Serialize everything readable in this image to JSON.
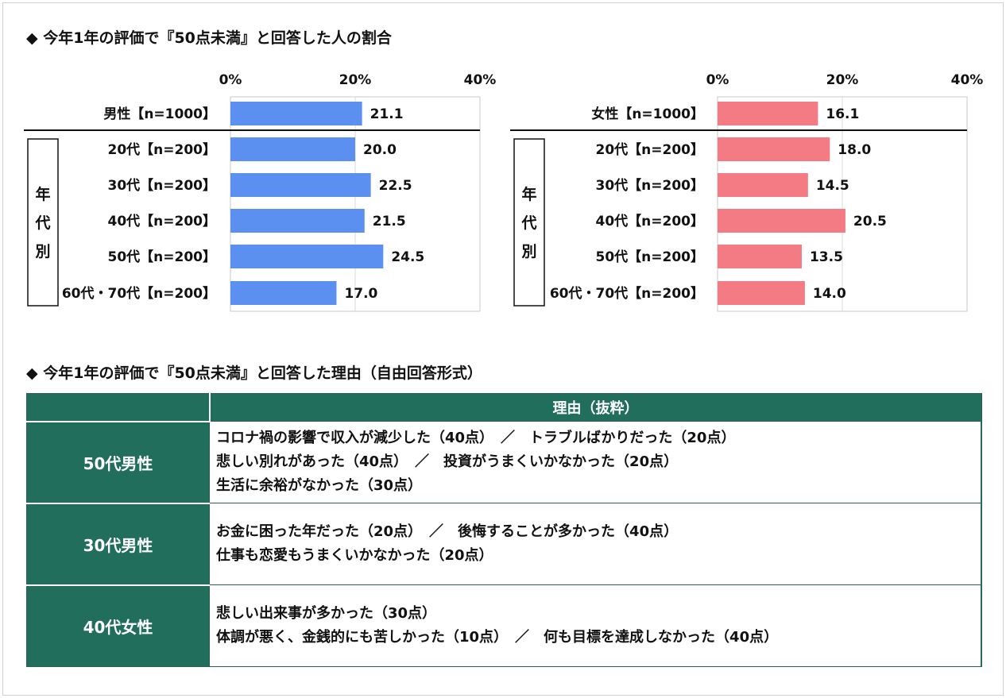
{
  "title1": "◆ 今年1年の評価で『50点未満』と回答した人の割合",
  "title2": "◆ 今年1年の評価で『50点未満』と回答した理由（自由回答形式）",
  "chart_data": [
    {
      "type": "bar",
      "orientation": "horizontal",
      "ticks": [
        "0%",
        "20%",
        "40%"
      ],
      "xlim": [
        0,
        40
      ],
      "color": "#5b8ff0",
      "group_label": "年代別",
      "categories": [
        "男性【n=1000】",
        "20代【n=200】",
        "30代【n=200】",
        "40代【n=200】",
        "50代【n=200】",
        "60代・70代【n=200】"
      ],
      "values": [
        21.1,
        20.0,
        22.5,
        21.5,
        24.5,
        17.0
      ],
      "value_labels": [
        "21.1",
        "20.0",
        "22.5",
        "21.5",
        "24.5",
        "17.0"
      ]
    },
    {
      "type": "bar",
      "orientation": "horizontal",
      "ticks": [
        "0%",
        "20%",
        "40%"
      ],
      "xlim": [
        0,
        40
      ],
      "color": "#f47b84",
      "group_label": "年代別",
      "categories": [
        "女性【n=1000】",
        "20代【n=200】",
        "30代【n=200】",
        "40代【n=200】",
        "50代【n=200】",
        "60代・70代【n=200】"
      ],
      "values": [
        16.1,
        18.0,
        14.5,
        20.5,
        13.5,
        14.0
      ],
      "value_labels": [
        "16.1",
        "18.0",
        "14.5",
        "20.5",
        "13.5",
        "14.0"
      ]
    }
  ],
  "table": {
    "header": "理由（抜粋）",
    "rows": [
      {
        "group": "50代男性",
        "lines": [
          "コロナ禍の影響で収入が減少した（40点）　／　トラブルばかりだった（20点）",
          "悲しい別れがあった（40点）　／　投資がうまくいかなかった（20点）",
          "生活に余裕がなかった（30点）"
        ]
      },
      {
        "group": "30代男性",
        "lines": [
          "お金に困った年だった（20点）　／　後悔することが多かった（40点）",
          "仕事も恋愛もうまくいかなかった（20点）"
        ]
      },
      {
        "group": "40代女性",
        "lines": [
          "悲しい出来事が多かった（30点）",
          "体調が悪く、金銭的にも苦しかった（10点）　／　何も目標を達成しなかった（40点）"
        ]
      }
    ]
  }
}
